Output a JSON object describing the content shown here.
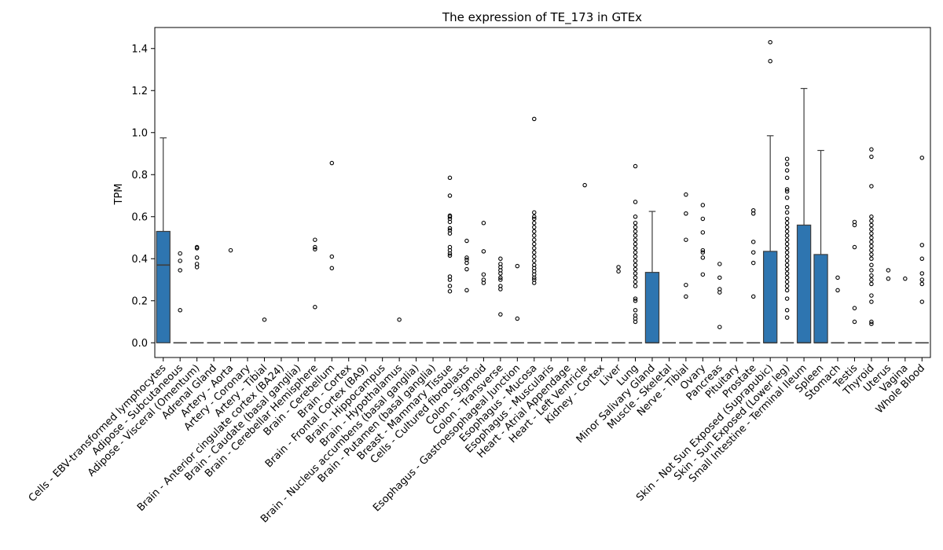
{
  "chart_data": {
    "type": "box",
    "title": "The expression of TE_173 in GTEx",
    "xlabel": "",
    "ylabel": "TPM",
    "ylim": [
      -0.07,
      1.5
    ],
    "yticks": [
      0.0,
      0.2,
      0.4,
      0.6,
      0.8,
      1.0,
      1.2,
      1.4
    ],
    "grid": false,
    "box_color": "#2e75b0",
    "categories": [
      "Cells - EBV-transformed lymphocytes",
      "Adipose - Subcutaneous",
      "Adipose - Visceral (Omentum)",
      "Adrenal Gland",
      "Artery - Aorta",
      "Artery - Coronary",
      "Artery - Tibial",
      "Brain - Anterior cingulate cortex (BA24)",
      "Brain - Caudate (basal ganglia)",
      "Brain - Cerebellar Hemisphere",
      "Brain - Cerebellum",
      "Brain - Cortex",
      "Brain - Frontal Cortex (BA9)",
      "Brain - Hippocampus",
      "Brain - Hypothalamus",
      "Brain - Nucleus accumbens (basal ganglia)",
      "Brain - Putamen (basal ganglia)",
      "Breast - Mammary Tissue",
      "Cells - Cultured fibroblasts",
      "Colon - Sigmoid",
      "Colon - Transverse",
      "Esophagus - Gastroesophageal Junction",
      "Esophagus - Mucosa",
      "Esophagus - Muscularis",
      "Heart - Atrial Appendage",
      "Heart - Left Ventricle",
      "Kidney - Cortex",
      "Liver",
      "Lung",
      "Minor Salivary Gland",
      "Muscle - Skeletal",
      "Nerve - Tibial",
      "Ovary",
      "Pancreas",
      "Pituitary",
      "Prostate",
      "Skin - Not Sun Exposed (Suprapubic)",
      "Skin - Sun Exposed (Lower leg)",
      "Small Intestine - Terminal Ileum",
      "Spleen",
      "Stomach",
      "Testis",
      "Thyroid",
      "Uterus",
      "Vagina",
      "Whole Blood"
    ],
    "boxes": [
      {
        "q1": 0,
        "median": 0.37,
        "q3": 0.53,
        "whisker_low": 0,
        "whisker_high": 0.975,
        "outliers": []
      },
      {
        "q1": 0,
        "median": 0,
        "q3": 0,
        "whisker_low": 0,
        "whisker_high": 0,
        "outliers": [
          0.155,
          0.345,
          0.39,
          0.425
        ]
      },
      {
        "q1": 0,
        "median": 0,
        "q3": 0,
        "whisker_low": 0,
        "whisker_high": 0,
        "outliers": [
          0.36,
          0.375,
          0.405,
          0.45,
          0.455
        ]
      },
      {
        "q1": 0,
        "median": 0,
        "q3": 0,
        "whisker_low": 0,
        "whisker_high": 0,
        "outliers": []
      },
      {
        "q1": 0,
        "median": 0,
        "q3": 0,
        "whisker_low": 0,
        "whisker_high": 0,
        "outliers": [
          0.44
        ]
      },
      {
        "q1": 0,
        "median": 0,
        "q3": 0,
        "whisker_low": 0,
        "whisker_high": 0,
        "outliers": []
      },
      {
        "q1": 0,
        "median": 0,
        "q3": 0,
        "whisker_low": 0,
        "whisker_high": 0,
        "outliers": [
          0.11
        ]
      },
      {
        "q1": 0,
        "median": 0,
        "q3": 0,
        "whisker_low": 0,
        "whisker_high": 0,
        "outliers": []
      },
      {
        "q1": 0,
        "median": 0,
        "q3": 0,
        "whisker_low": 0,
        "whisker_high": 0,
        "outliers": []
      },
      {
        "q1": 0,
        "median": 0,
        "q3": 0,
        "whisker_low": 0,
        "whisker_high": 0,
        "outliers": [
          0.17,
          0.445,
          0.455,
          0.49
        ]
      },
      {
        "q1": 0,
        "median": 0,
        "q3": 0,
        "whisker_low": 0,
        "whisker_high": 0,
        "outliers": [
          0.355,
          0.41,
          0.855
        ]
      },
      {
        "q1": 0,
        "median": 0,
        "q3": 0,
        "whisker_low": 0,
        "whisker_high": 0,
        "outliers": []
      },
      {
        "q1": 0,
        "median": 0,
        "q3": 0,
        "whisker_low": 0,
        "whisker_high": 0,
        "outliers": []
      },
      {
        "q1": 0,
        "median": 0,
        "q3": 0,
        "whisker_low": 0,
        "whisker_high": 0,
        "outliers": []
      },
      {
        "q1": 0,
        "median": 0,
        "q3": 0,
        "whisker_low": 0,
        "whisker_high": 0,
        "outliers": [
          0.11
        ]
      },
      {
        "q1": 0,
        "median": 0,
        "q3": 0,
        "whisker_low": 0,
        "whisker_high": 0,
        "outliers": []
      },
      {
        "q1": 0,
        "median": 0,
        "q3": 0,
        "whisker_low": 0,
        "whisker_high": 0,
        "outliers": []
      },
      {
        "q1": 0,
        "median": 0,
        "q3": 0,
        "whisker_low": 0,
        "whisker_high": 0,
        "outliers": [
          0.245,
          0.27,
          0.3,
          0.315,
          0.415,
          0.425,
          0.44,
          0.455,
          0.52,
          0.535,
          0.545,
          0.575,
          0.59,
          0.6,
          0.605,
          0.7,
          0.785
        ]
      },
      {
        "q1": 0,
        "median": 0,
        "q3": 0,
        "whisker_low": 0,
        "whisker_high": 0,
        "outliers": [
          0.25,
          0.35,
          0.38,
          0.395,
          0.405,
          0.485
        ]
      },
      {
        "q1": 0,
        "median": 0,
        "q3": 0,
        "whisker_low": 0,
        "whisker_high": 0,
        "outliers": [
          0.285,
          0.3,
          0.325,
          0.435,
          0.57
        ]
      },
      {
        "q1": 0,
        "median": 0,
        "q3": 0,
        "whisker_low": 0,
        "whisker_high": 0,
        "outliers": [
          0.135,
          0.255,
          0.27,
          0.3,
          0.31,
          0.33,
          0.345,
          0.36,
          0.375,
          0.4
        ]
      },
      {
        "q1": 0,
        "median": 0,
        "q3": 0,
        "whisker_low": 0,
        "whisker_high": 0,
        "outliers": [
          0.115,
          0.365
        ]
      },
      {
        "q1": 0,
        "median": 0,
        "q3": 0,
        "whisker_low": 0,
        "whisker_high": 0,
        "outliers": [
          0.285,
          0.3,
          0.31,
          0.325,
          0.34,
          0.355,
          0.37,
          0.39,
          0.41,
          0.43,
          0.45,
          0.47,
          0.49,
          0.51,
          0.53,
          0.55,
          0.57,
          0.59,
          0.6,
          0.62,
          1.065
        ]
      },
      {
        "q1": 0,
        "median": 0,
        "q3": 0,
        "whisker_low": 0,
        "whisker_high": 0,
        "outliers": []
      },
      {
        "q1": 0,
        "median": 0,
        "q3": 0,
        "whisker_low": 0,
        "whisker_high": 0,
        "outliers": []
      },
      {
        "q1": 0,
        "median": 0,
        "q3": 0,
        "whisker_low": 0,
        "whisker_high": 0,
        "outliers": [
          0.75
        ]
      },
      {
        "q1": 0,
        "median": 0,
        "q3": 0,
        "whisker_low": 0,
        "whisker_high": 0,
        "outliers": []
      },
      {
        "q1": 0,
        "median": 0,
        "q3": 0,
        "whisker_low": 0,
        "whisker_high": 0,
        "outliers": [
          0.34,
          0.36
        ]
      },
      {
        "q1": 0,
        "median": 0,
        "q3": 0,
        "whisker_low": 0,
        "whisker_high": 0,
        "outliers": [
          0.1,
          0.115,
          0.13,
          0.155,
          0.2,
          0.21,
          0.27,
          0.29,
          0.31,
          0.33,
          0.35,
          0.37,
          0.39,
          0.41,
          0.43,
          0.45,
          0.47,
          0.49,
          0.51,
          0.53,
          0.55,
          0.57,
          0.6,
          0.67,
          0.84
        ]
      },
      {
        "q1": 0,
        "median": 0,
        "q3": 0.335,
        "whisker_low": 0,
        "whisker_high": 0.625,
        "outliers": []
      },
      {
        "q1": 0,
        "median": 0,
        "q3": 0,
        "whisker_low": 0,
        "whisker_high": 0,
        "outliers": []
      },
      {
        "q1": 0,
        "median": 0,
        "q3": 0,
        "whisker_low": 0,
        "whisker_high": 0,
        "outliers": [
          0.22,
          0.275,
          0.49,
          0.615,
          0.705
        ]
      },
      {
        "q1": 0,
        "median": 0,
        "q3": 0,
        "whisker_low": 0,
        "whisker_high": 0,
        "outliers": [
          0.325,
          0.405,
          0.43,
          0.44,
          0.525,
          0.59,
          0.655
        ]
      },
      {
        "q1": 0,
        "median": 0,
        "q3": 0,
        "whisker_low": 0,
        "whisker_high": 0,
        "outliers": [
          0.075,
          0.24,
          0.255,
          0.31,
          0.375
        ]
      },
      {
        "q1": 0,
        "median": 0,
        "q3": 0,
        "whisker_low": 0,
        "whisker_high": 0,
        "outliers": []
      },
      {
        "q1": 0,
        "median": 0,
        "q3": 0,
        "whisker_low": 0,
        "whisker_high": 0,
        "outliers": [
          0.22,
          0.38,
          0.43,
          0.48,
          0.615,
          0.63
        ]
      },
      {
        "q1": 0,
        "median": 0,
        "q3": 0.435,
        "whisker_low": 0,
        "whisker_high": 0.985,
        "outliers": [
          1.34,
          1.43
        ]
      },
      {
        "q1": 0,
        "median": 0,
        "q3": 0,
        "whisker_low": 0,
        "whisker_high": 0,
        "outliers": [
          0.12,
          0.155,
          0.21,
          0.25,
          0.27,
          0.29,
          0.31,
          0.33,
          0.35,
          0.37,
          0.39,
          0.41,
          0.43,
          0.45,
          0.47,
          0.49,
          0.51,
          0.53,
          0.55,
          0.57,
          0.59,
          0.62,
          0.645,
          0.69,
          0.72,
          0.73,
          0.785,
          0.82,
          0.85,
          0.875
        ]
      },
      {
        "q1": 0,
        "median": 0,
        "q3": 0.56,
        "whisker_low": 0,
        "whisker_high": 1.21,
        "outliers": []
      },
      {
        "q1": 0,
        "median": 0,
        "q3": 0.42,
        "whisker_low": 0,
        "whisker_high": 0.915,
        "outliers": []
      },
      {
        "q1": 0,
        "median": 0,
        "q3": 0,
        "whisker_low": 0,
        "whisker_high": 0,
        "outliers": [
          0.25,
          0.31
        ]
      },
      {
        "q1": 0,
        "median": 0,
        "q3": 0,
        "whisker_low": 0,
        "whisker_high": 0,
        "outliers": [
          0.1,
          0.165,
          0.455,
          0.56,
          0.575
        ]
      },
      {
        "q1": 0,
        "median": 0,
        "q3": 0,
        "whisker_low": 0,
        "whisker_high": 0,
        "outliers": [
          0.09,
          0.1,
          0.195,
          0.225,
          0.28,
          0.3,
          0.32,
          0.345,
          0.37,
          0.4,
          0.42,
          0.44,
          0.46,
          0.48,
          0.5,
          0.52,
          0.54,
          0.56,
          0.58,
          0.6,
          0.745,
          0.885,
          0.92
        ]
      },
      {
        "q1": 0,
        "median": 0,
        "q3": 0,
        "whisker_low": 0,
        "whisker_high": 0,
        "outliers": [
          0.305,
          0.345
        ]
      },
      {
        "q1": 0,
        "median": 0,
        "q3": 0,
        "whisker_low": 0,
        "whisker_high": 0,
        "outliers": [
          0.305
        ]
      },
      {
        "q1": 0,
        "median": 0,
        "q3": 0,
        "whisker_low": 0,
        "whisker_high": 0,
        "outliers": [
          0.195,
          0.28,
          0.3,
          0.33,
          0.4,
          0.465,
          0.88
        ]
      }
    ]
  }
}
